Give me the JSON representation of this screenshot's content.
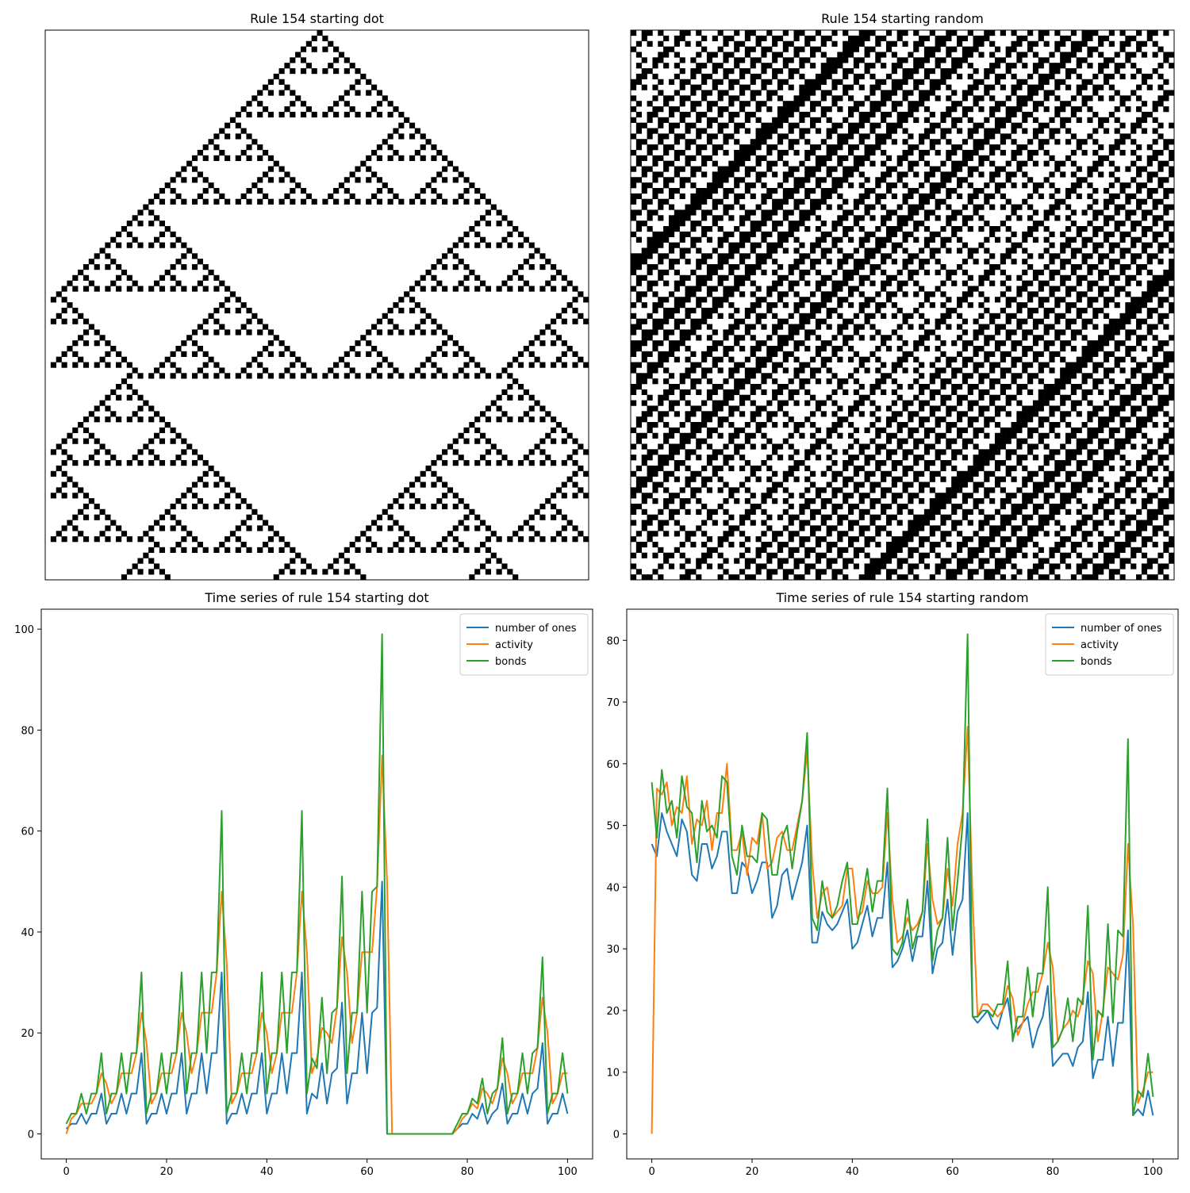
{
  "chart_data": [
    {
      "type": "ca",
      "title": "Rule 154 starting dot",
      "rule": 154,
      "width": 100,
      "steps": 101,
      "initial": "0000000000000000000000000000000000000000000000000010000000000000000000000000000000000000000000000000"
    },
    {
      "type": "ca",
      "title": "Rule 154 starting random",
      "rule": 154,
      "width": 100,
      "steps": 101,
      "initial": "1011010001101000100101100100101100100101001110010110100100110010011010100101101001011100101001011010"
    },
    {
      "type": "line",
      "title": "Time series of rule 154 starting dot",
      "x": [
        0,
        1,
        2,
        3,
        4,
        5,
        6,
        7,
        8,
        9,
        10,
        11,
        12,
        13,
        14,
        15,
        16,
        17,
        18,
        19,
        20,
        21,
        22,
        23,
        24,
        25,
        26,
        27,
        28,
        29,
        30,
        31,
        32,
        33,
        34,
        35,
        36,
        37,
        38,
        39,
        40,
        41,
        42,
        43,
        44,
        45,
        46,
        47,
        48,
        49,
        50,
        51,
        52,
        53,
        54,
        55,
        56,
        57,
        58,
        59,
        60,
        61,
        62,
        63,
        64,
        65,
        66,
        67,
        68,
        69,
        70,
        71,
        72,
        73,
        74,
        75,
        76,
        77,
        78,
        79,
        80,
        81,
        82,
        83,
        84,
        85,
        86,
        87,
        88,
        89,
        90,
        91,
        92,
        93,
        94,
        95,
        96,
        97,
        98,
        99,
        100
      ],
      "xlim": [
        -5,
        105
      ],
      "xticks": [
        0,
        20,
        40,
        60,
        80,
        100
      ],
      "ylim": [
        -4.95,
        103.95
      ],
      "yticks": [
        0,
        20,
        40,
        60,
        80,
        100
      ],
      "legend": "upper right",
      "series": [
        {
          "name": "number of ones",
          "color": "#1f77b4",
          "values": [
            1,
            2,
            2,
            4,
            2,
            4,
            4,
            8,
            2,
            4,
            4,
            8,
            4,
            8,
            8,
            16,
            2,
            4,
            4,
            8,
            4,
            8,
            8,
            16,
            4,
            8,
            8,
            16,
            8,
            16,
            16,
            32,
            2,
            4,
            4,
            8,
            4,
            8,
            8,
            16,
            4,
            8,
            8,
            16,
            8,
            16,
            16,
            32,
            4,
            8,
            7,
            14,
            6,
            12,
            13,
            26,
            6,
            12,
            12,
            24,
            12,
            24,
            25,
            50,
            0,
            0,
            0,
            0,
            0,
            0,
            0,
            0,
            0,
            0,
            0,
            0,
            0,
            0,
            1,
            2,
            2,
            4,
            3,
            6,
            2,
            4,
            5,
            10,
            2,
            4,
            4,
            8,
            4,
            8,
            9,
            18,
            2,
            4,
            4,
            8,
            4
          ]
        },
        {
          "name": "activity",
          "color": "#ff7f0e",
          "values": [
            0,
            3,
            4,
            6,
            6,
            6,
            8,
            12,
            10,
            6,
            8,
            12,
            12,
            12,
            16,
            24,
            18,
            6,
            8,
            12,
            12,
            12,
            16,
            24,
            20,
            12,
            16,
            24,
            24,
            24,
            32,
            48,
            34,
            6,
            8,
            12,
            12,
            12,
            16,
            24,
            20,
            12,
            16,
            24,
            24,
            24,
            32,
            48,
            36,
            12,
            15,
            21,
            20,
            18,
            25,
            39,
            32,
            18,
            24,
            36,
            36,
            36,
            49,
            75,
            50,
            0,
            0,
            0,
            0,
            0,
            0,
            0,
            0,
            0,
            0,
            0,
            0,
            0,
            1,
            3,
            4,
            6,
            5,
            9,
            8,
            6,
            9,
            15,
            12,
            6,
            8,
            12,
            12,
            12,
            17,
            27,
            20,
            6,
            8,
            12,
            12
          ]
        },
        {
          "name": "bonds",
          "color": "#2ca02c",
          "values": [
            2,
            4,
            4,
            8,
            4,
            8,
            8,
            16,
            4,
            8,
            8,
            16,
            8,
            16,
            16,
            32,
            4,
            8,
            8,
            16,
            8,
            16,
            16,
            32,
            8,
            16,
            16,
            32,
            16,
            32,
            32,
            64,
            4,
            8,
            8,
            16,
            8,
            16,
            16,
            32,
            8,
            16,
            16,
            32,
            16,
            32,
            32,
            64,
            8,
            15,
            13,
            27,
            12,
            24,
            25,
            51,
            12,
            24,
            24,
            48,
            24,
            48,
            49,
            99,
            0,
            0,
            0,
            0,
            0,
            0,
            0,
            0,
            0,
            0,
            0,
            0,
            0,
            0,
            2,
            4,
            4,
            7,
            6,
            11,
            4,
            8,
            9,
            19,
            4,
            8,
            8,
            16,
            8,
            16,
            17,
            35,
            4,
            8,
            8,
            16,
            8
          ]
        }
      ]
    },
    {
      "type": "line",
      "title": "Time series of rule 154 starting random",
      "x": [
        0,
        1,
        2,
        3,
        4,
        5,
        6,
        7,
        8,
        9,
        10,
        11,
        12,
        13,
        14,
        15,
        16,
        17,
        18,
        19,
        20,
        21,
        22,
        23,
        24,
        25,
        26,
        27,
        28,
        29,
        30,
        31,
        32,
        33,
        34,
        35,
        36,
        37,
        38,
        39,
        40,
        41,
        42,
        43,
        44,
        45,
        46,
        47,
        48,
        49,
        50,
        51,
        52,
        53,
        54,
        55,
        56,
        57,
        58,
        59,
        60,
        61,
        62,
        63,
        64,
        65,
        66,
        67,
        68,
        69,
        70,
        71,
        72,
        73,
        74,
        75,
        76,
        77,
        78,
        79,
        80,
        81,
        82,
        83,
        84,
        85,
        86,
        87,
        88,
        89,
        90,
        91,
        92,
        93,
        94,
        95,
        96,
        97,
        98,
        99,
        100
      ],
      "xlim": [
        -5,
        105
      ],
      "xticks": [
        0,
        20,
        40,
        60,
        80,
        100
      ],
      "ylim": [
        -4.05,
        85.05
      ],
      "yticks": [
        0,
        10,
        20,
        30,
        40,
        50,
        60,
        70,
        80
      ],
      "legend": "upper right",
      "series": [
        {
          "name": "number of ones",
          "color": "#1f77b4",
          "values": [
            47,
            45,
            52,
            49,
            47,
            45,
            51,
            49,
            42,
            41,
            47,
            47,
            43,
            45,
            49,
            49,
            39,
            39,
            44,
            43,
            39,
            41,
            44,
            44,
            35,
            37,
            42,
            43,
            38,
            41,
            44,
            50,
            31,
            31,
            36,
            34,
            33,
            34,
            36,
            38,
            30,
            31,
            34,
            37,
            32,
            35,
            35,
            44,
            27,
            28,
            30,
            33,
            28,
            32,
            32,
            41,
            26,
            30,
            31,
            38,
            29,
            36,
            38,
            52,
            19,
            18,
            19,
            20,
            18,
            17,
            20,
            22,
            16,
            17,
            18,
            19,
            14,
            17,
            19,
            24,
            11,
            12,
            13,
            13,
            11,
            14,
            15,
            23,
            9,
            12,
            12,
            19,
            11,
            18,
            18,
            33,
            3,
            4,
            3,
            7,
            3
          ]
        },
        {
          "name": "activity",
          "color": "#ff7f0e",
          "values": [
            0,
            56,
            55,
            57,
            50,
            53,
            52,
            58,
            47,
            51,
            50,
            54,
            46,
            52,
            52,
            60,
            46,
            46,
            49,
            42,
            48,
            47,
            52,
            43,
            44,
            48,
            49,
            46,
            46,
            50,
            54,
            62,
            44,
            35,
            39,
            40,
            35,
            36,
            37,
            43,
            43,
            35,
            36,
            41,
            39,
            39,
            40,
            52,
            38,
            31,
            32,
            35,
            33,
            34,
            36,
            47,
            38,
            34,
            35,
            43,
            37,
            47,
            52,
            66,
            38,
            19,
            21,
            21,
            20,
            19,
            20,
            24,
            22,
            16,
            18,
            21,
            23,
            23,
            26,
            31,
            27,
            15,
            17,
            18,
            20,
            19,
            22,
            28,
            26,
            15,
            20,
            27,
            26,
            25,
            29,
            47,
            34,
            5,
            7,
            10,
            10
          ]
        },
        {
          "name": "bonds",
          "color": "#2ca02c",
          "values": [
            57,
            48,
            59,
            52,
            54,
            48,
            58,
            53,
            52,
            44,
            54,
            49,
            50,
            48,
            58,
            57,
            45,
            42,
            50,
            45,
            45,
            44,
            52,
            51,
            42,
            42,
            48,
            50,
            43,
            49,
            54,
            65,
            35,
            33,
            41,
            36,
            35,
            37,
            41,
            44,
            34,
            34,
            38,
            43,
            36,
            41,
            41,
            56,
            30,
            29,
            31,
            38,
            30,
            33,
            36,
            51,
            28,
            33,
            35,
            48,
            33,
            41,
            50,
            81,
            19,
            19,
            20,
            20,
            19,
            21,
            21,
            28,
            15,
            19,
            19,
            27,
            19,
            26,
            26,
            40,
            14,
            15,
            17,
            22,
            15,
            22,
            21,
            37,
            12,
            20,
            19,
            34,
            18,
            33,
            32,
            64,
            3,
            7,
            6,
            13,
            6
          ]
        }
      ]
    }
  ]
}
